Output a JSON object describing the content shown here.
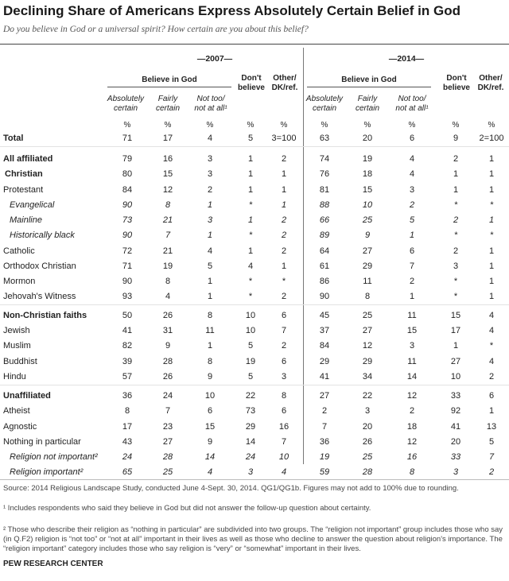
{
  "title": "Declining Share of Americans Express Absolutely Certain Belief in God",
  "subtitle": "Do you believe in God or a universal spirit? How certain are you about this belief?",
  "years": [
    "—2007—",
    "—2014—"
  ],
  "group_header": "Believe in God",
  "col_headers": {
    "abs": [
      "Absolutely",
      "certain"
    ],
    "fairly": [
      "Fairly",
      "certain"
    ],
    "nottoo": [
      "Not too/",
      "not at all¹"
    ],
    "dont": [
      "Don't",
      "believe"
    ],
    "other": [
      "Other/",
      "DK/ref."
    ]
  },
  "pct_symbol": "%",
  "rows": [
    {
      "label": "Total",
      "style": "b",
      "v": [
        "71",
        "17",
        "4",
        "5",
        "3=100",
        "63",
        "20",
        "6",
        "9",
        "2=100"
      ]
    },
    {
      "label": "All affiliated",
      "style": "b",
      "v": [
        "79",
        "16",
        "3",
        "1",
        "2",
        "74",
        "19",
        "4",
        "2",
        "1"
      ]
    },
    {
      "label": "Christian",
      "style": "b",
      "v": [
        "80",
        "15",
        "3",
        "1",
        "1",
        "76",
        "18",
        "4",
        "1",
        "1"
      ]
    },
    {
      "label": "Protestant",
      "style": "",
      "v": [
        "84",
        "12",
        "2",
        "1",
        "1",
        "81",
        "15",
        "3",
        "1",
        "1"
      ]
    },
    {
      "label": "Evangelical",
      "style": "i",
      "v": [
        "90",
        "8",
        "1",
        "*",
        "1",
        "88",
        "10",
        "2",
        "*",
        "*"
      ]
    },
    {
      "label": "Mainline",
      "style": "i",
      "v": [
        "73",
        "21",
        "3",
        "1",
        "2",
        "66",
        "25",
        "5",
        "2",
        "1"
      ]
    },
    {
      "label": "Historically black",
      "style": "i",
      "v": [
        "90",
        "7",
        "1",
        "*",
        "2",
        "89",
        "9",
        "1",
        "*",
        "*"
      ]
    },
    {
      "label": "Catholic",
      "style": "",
      "v": [
        "72",
        "21",
        "4",
        "1",
        "2",
        "64",
        "27",
        "6",
        "2",
        "1"
      ]
    },
    {
      "label": "Orthodox Christian",
      "style": "",
      "v": [
        "71",
        "19",
        "5",
        "4",
        "1",
        "61",
        "29",
        "7",
        "3",
        "1"
      ]
    },
    {
      "label": "Mormon",
      "style": "",
      "v": [
        "90",
        "8",
        "1",
        "*",
        "*",
        "86",
        "11",
        "2",
        "*",
        "1"
      ]
    },
    {
      "label": "Jehovah's Witness",
      "style": "",
      "v": [
        "93",
        "4",
        "1",
        "*",
        "2",
        "90",
        "8",
        "1",
        "*",
        "1"
      ]
    },
    {
      "label": "Non-Christian faiths",
      "style": "b",
      "v": [
        "50",
        "26",
        "8",
        "10",
        "6",
        "45",
        "25",
        "11",
        "15",
        "4"
      ]
    },
    {
      "label": "Jewish",
      "style": "",
      "v": [
        "41",
        "31",
        "11",
        "10",
        "7",
        "37",
        "27",
        "15",
        "17",
        "4"
      ]
    },
    {
      "label": "Muslim",
      "style": "",
      "v": [
        "82",
        "9",
        "1",
        "5",
        "2",
        "84",
        "12",
        "3",
        "1",
        "*"
      ]
    },
    {
      "label": "Buddhist",
      "style": "",
      "v": [
        "39",
        "28",
        "8",
        "19",
        "6",
        "29",
        "29",
        "11",
        "27",
        "4"
      ]
    },
    {
      "label": "Hindu",
      "style": "",
      "v": [
        "57",
        "26",
        "9",
        "5",
        "3",
        "41",
        "34",
        "14",
        "10",
        "2"
      ]
    },
    {
      "label": "Unaffiliated",
      "style": "b",
      "v": [
        "36",
        "24",
        "10",
        "22",
        "8",
        "27",
        "22",
        "12",
        "33",
        "6"
      ]
    },
    {
      "label": "Atheist",
      "style": "",
      "v": [
        "8",
        "7",
        "6",
        "73",
        "6",
        "2",
        "3",
        "2",
        "92",
        "1"
      ]
    },
    {
      "label": "Agnostic",
      "style": "",
      "v": [
        "17",
        "23",
        "15",
        "29",
        "16",
        "7",
        "20",
        "18",
        "41",
        "13"
      ]
    },
    {
      "label": "Nothing in particular",
      "style": "",
      "v": [
        "43",
        "27",
        "9",
        "14",
        "7",
        "36",
        "26",
        "12",
        "20",
        "5"
      ]
    },
    {
      "label": "Religion not important²",
      "style": "i",
      "v": [
        "24",
        "28",
        "14",
        "24",
        "10",
        "19",
        "25",
        "16",
        "33",
        "7"
      ]
    },
    {
      "label": "Religion important²",
      "style": "i",
      "v": [
        "65",
        "25",
        "4",
        "3",
        "4",
        "59",
        "28",
        "8",
        "3",
        "2"
      ]
    }
  ],
  "source": "Source: 2014 Religious Landscape Study, conducted June 4-Sept. 30, 2014. QG1/QG1b. Figures may not add to 100% due to rounding.",
  "footnote1": "¹ Includes respondents who said they believe in God but did not answer the follow-up question about certainty.",
  "footnote2": "² Those who describe their religion as “nothing in particular” are subdivided into two groups. The “religion not important” group includes those who say (in Q.F2) religion is “not too” or “not at all” important in their lives as well as those who decline to answer the question about religion's importance. The “religion important” category includes those who say religion is “very” or “somewhat” important in their lives.",
  "brand": "PEW RESEARCH CENTER"
}
